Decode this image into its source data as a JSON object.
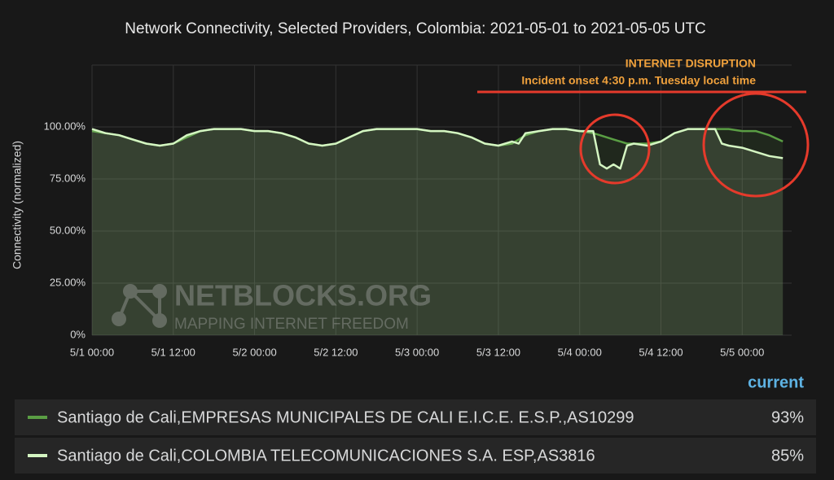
{
  "chart_data": {
    "type": "line",
    "title": "Network Connectivity, Selected Providers, Colombia: 2021-05-01 to 2021-05-05 UTC",
    "ylabel": "Connectivity (normalized)",
    "annotations": [
      "INTERNET DISRUPTION",
      "Incident onset 4:30 p.m. Tuesday local time"
    ],
    "watermark": {
      "title": "NETBLOCKS.ORG",
      "subtitle": "MAPPING INTERNET FREEDOM"
    },
    "legend_header": "current",
    "x": [
      0,
      2,
      4,
      6,
      8,
      10,
      12,
      14,
      16,
      18,
      20,
      22,
      24,
      26,
      28,
      30,
      32,
      34,
      36,
      38,
      40,
      42,
      44,
      46,
      48,
      50,
      52,
      54,
      56,
      58,
      60,
      62,
      63,
      64,
      66,
      68,
      70,
      72,
      74,
      75,
      76,
      77,
      78,
      79,
      80,
      82,
      84,
      86,
      88,
      90,
      92,
      93,
      94,
      96,
      98,
      100,
      102
    ],
    "xlim": [
      0,
      103.3
    ],
    "xticks": [
      {
        "value": 0,
        "label": "5/1 00:00"
      },
      {
        "value": 12,
        "label": "5/1 12:00"
      },
      {
        "value": 24,
        "label": "5/2 00:00"
      },
      {
        "value": 36,
        "label": "5/2 12:00"
      },
      {
        "value": 48,
        "label": "5/3 00:00"
      },
      {
        "value": 60,
        "label": "5/3 12:00"
      },
      {
        "value": 72,
        "label": "5/4 00:00"
      },
      {
        "value": 84,
        "label": "5/4 12:00"
      },
      {
        "value": 96,
        "label": "5/5 00:00"
      }
    ],
    "ylim": [
      0,
      125
    ],
    "yticks": [
      {
        "value": 0,
        "label": "0%"
      },
      {
        "value": 25,
        "label": "25.00%"
      },
      {
        "value": 50,
        "label": "50.00%"
      },
      {
        "value": 75,
        "label": "75.00%"
      },
      {
        "value": 100,
        "label": "100.00%"
      }
    ],
    "grid": true,
    "series": [
      {
        "name": "Santiago de Cali,EMPRESAS MUNICIPALES DE CALI E.I.C.E. E.S.P.,AS10299",
        "color": "#5a9e44",
        "values": [
          98,
          97,
          96,
          94,
          92,
          91,
          92,
          95,
          98,
          99,
          99,
          99,
          98,
          98,
          97,
          95,
          92,
          91,
          92,
          95,
          98,
          99,
          99,
          99,
          99,
          98,
          98,
          97,
          95,
          92,
          91,
          92,
          94,
          96,
          98,
          99,
          99,
          98,
          97,
          96,
          95,
          94,
          93,
          92,
          92,
          92,
          93,
          97,
          99,
          99,
          99,
          99,
          99,
          98,
          98,
          96,
          93
        ],
        "current": {
          "value": 93,
          "label": "93%"
        }
      },
      {
        "name": "Santiago de Cali,COLOMBIA TELECOMUNICACIONES S.A. ESP,AS3816",
        "color": "#d4f5c2",
        "values": [
          99,
          97,
          96,
          94,
          92,
          91,
          92,
          96,
          98,
          99,
          99,
          99,
          98,
          98,
          97,
          95,
          92,
          91,
          92,
          95,
          98,
          99,
          99,
          99,
          99,
          98,
          98,
          97,
          95,
          92,
          91,
          93,
          92,
          97,
          98,
          99,
          99,
          98,
          98,
          82,
          80,
          82,
          80,
          91,
          92,
          91,
          93,
          97,
          99,
          99,
          99,
          92,
          91,
          90,
          88,
          86,
          85
        ],
        "current": {
          "value": 85,
          "label": "85%"
        }
      }
    ]
  }
}
